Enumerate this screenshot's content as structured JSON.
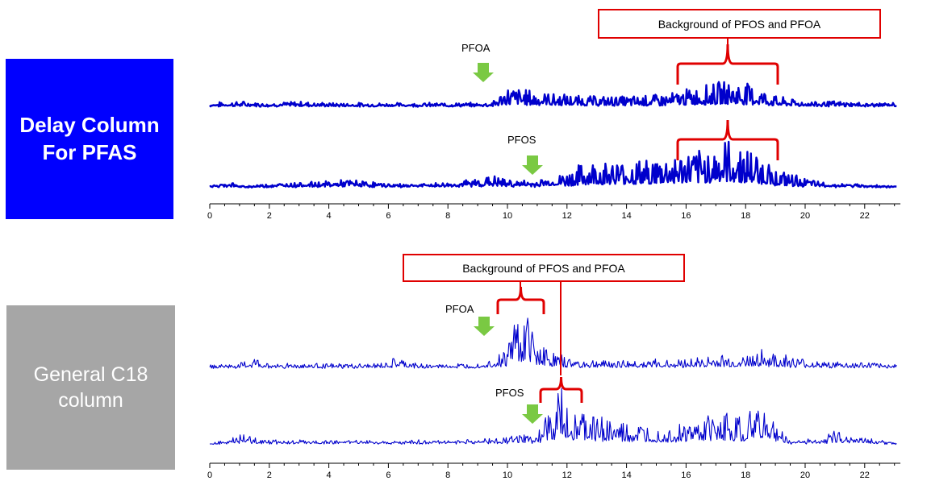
{
  "panels": {
    "top_label": "Delay Column\nFor PFAS",
    "bottom_label": "General C18\ncolumn"
  },
  "annotations": {
    "top_background": "Background of PFOS and PFOA",
    "bottom_background": "Background of PFOS and PFOA",
    "pfoa": "PFOA",
    "pfos": "PFOS"
  },
  "colors": {
    "trace": "#0000cc",
    "bracket": "#e00000",
    "arrow": "#7ac943",
    "top_panel": "#0000ff",
    "bottom_panel": "#a6a6a6"
  },
  "chart_data": [
    {
      "type": "line",
      "title": "",
      "xlabel": "",
      "ylabel": "",
      "xlim": [
        0,
        23.2
      ],
      "x_ticks": [
        0,
        2,
        4,
        6,
        8,
        10,
        12,
        14,
        16,
        18,
        20,
        22
      ],
      "series": [
        {
          "name": "PFOA",
          "x": [
            0,
            1,
            2,
            3,
            4,
            5,
            6,
            7,
            8,
            9,
            9.5,
            10,
            11,
            12,
            13,
            14,
            15,
            15.5,
            16,
            16.5,
            17,
            17.5,
            18,
            18.5,
            19,
            20,
            21,
            22,
            23
          ],
          "y": [
            2,
            3,
            2,
            3,
            2,
            2,
            2,
            2,
            2,
            2,
            3,
            12,
            9,
            7,
            6,
            6,
            7,
            8,
            10,
            12,
            14,
            15,
            14,
            11,
            6,
            3,
            3,
            2,
            2
          ]
        },
        {
          "name": "PFOS",
          "x": [
            0,
            0.7,
            1,
            2,
            4.2,
            4.7,
            6,
            7,
            8.2,
            9,
            9.5,
            10,
            10.8,
            11,
            11.5,
            12,
            12.5,
            13,
            14,
            15,
            15.5,
            16,
            16.5,
            17,
            17.5,
            18,
            18.5,
            19,
            20.3,
            21,
            21.5,
            23
          ],
          "y": [
            0,
            4,
            0,
            2,
            4,
            5,
            2,
            2,
            3,
            6,
            8,
            5,
            4,
            5,
            7,
            10,
            16,
            18,
            18,
            20,
            22,
            24,
            25,
            30,
            32,
            28,
            22,
            12,
            4,
            2,
            2,
            0
          ]
        }
      ],
      "annotations": [
        {
          "text": "PFOA",
          "x": 9.3
        },
        {
          "text": "PFOS",
          "x": 10.8
        },
        {
          "text": "Background of PFOS and PFOA",
          "x_range": [
            15.7,
            19
          ]
        }
      ]
    },
    {
      "type": "line",
      "title": "",
      "xlabel": "",
      "ylabel": "",
      "xlim": [
        0,
        23.2
      ],
      "x_ticks": [
        0,
        2,
        4,
        6,
        8,
        10,
        12,
        14,
        16,
        18,
        20,
        22
      ],
      "series": [
        {
          "name": "PFOA",
          "x": [
            0,
            1,
            1.5,
            2,
            3,
            4,
            5,
            6,
            6.2,
            7,
            8,
            9,
            9.5,
            10,
            10.2,
            10.5,
            10.8,
            11,
            11.5,
            12,
            13,
            14,
            15,
            16,
            17,
            18,
            18.5,
            19,
            20,
            21,
            22,
            23
          ],
          "y": [
            3,
            4,
            10,
            4,
            5,
            4,
            4,
            5,
            10,
            4,
            4,
            5,
            10,
            20,
            60,
            55,
            50,
            30,
            15,
            10,
            8,
            8,
            8,
            9,
            12,
            12,
            18,
            14,
            8,
            6,
            5,
            4
          ]
        },
        {
          "name": "PFOS",
          "x": [
            0,
            1.1,
            2,
            2.3,
            6.7,
            7.1,
            8.5,
            9,
            10.5,
            11,
            11.5,
            11.8,
            12,
            12.5,
            13,
            13.5,
            14,
            15,
            16,
            17,
            17.5,
            18,
            18.5,
            19,
            19.5,
            20.6,
            21,
            21.5,
            22,
            22.5,
            23
          ],
          "y": [
            0,
            8,
            4,
            3,
            3,
            3,
            4,
            4,
            8,
            10,
            35,
            55,
            40,
            30,
            28,
            22,
            18,
            15,
            18,
            28,
            30,
            25,
            42,
            20,
            3,
            5,
            14,
            10,
            6,
            4,
            0
          ]
        }
      ],
      "annotations": [
        {
          "text": "PFOA",
          "x": 9.3
        },
        {
          "text": "PFOS",
          "x": 10.8
        },
        {
          "text": "Background of PFOS and PFOA",
          "x_range": [
            9.6,
            12.5
          ]
        }
      ]
    }
  ]
}
